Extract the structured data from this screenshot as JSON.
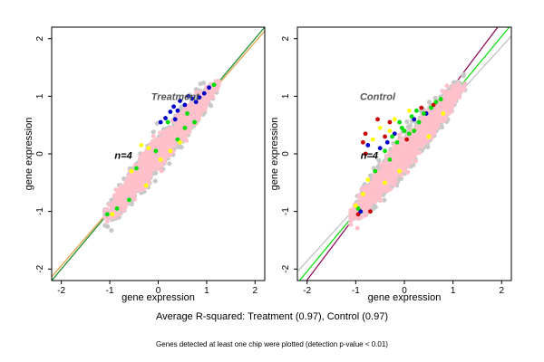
{
  "footer": {
    "caption": "Average R-squared: Treatment (0.97), Control (0.97)",
    "note": "Genes detected at least one chip were plotted (detection p-value < 0.01)"
  },
  "chart_data": [
    {
      "type": "scatter",
      "panel_label": "Treatment",
      "n_label": "n=4",
      "xlabel": "gene expression",
      "ylabel": "gene expression",
      "xlim": [
        -2.2,
        2.2
      ],
      "ylim": [
        -2.2,
        2.2
      ],
      "x_ticks": [
        -2,
        -1,
        0,
        1,
        2
      ],
      "y_ticks": [
        -2,
        -1,
        0,
        1,
        2
      ],
      "reference_lines": [
        {
          "slope": 1.0,
          "intercept": 0.0,
          "color": "#1a2a8c"
        },
        {
          "slope": 1.0,
          "intercept": 0.0,
          "color": "#2e9e2e"
        },
        {
          "slope": 0.97,
          "intercept": 0.0,
          "color": "#e0a040"
        }
      ],
      "cloud": {
        "color": "#ffc0cb",
        "edge_color": "#c8c8c8",
        "x_range": [
          -1.1,
          1.25
        ],
        "spread": 0.32
      },
      "highlighted_points": [
        {
          "color": "#0000cc",
          "points": [
            [
              0.15,
              0.62
            ],
            [
              0.25,
              0.73
            ],
            [
              0.32,
              0.82
            ],
            [
              0.45,
              0.92
            ],
            [
              0.62,
              1.0
            ],
            [
              0.55,
              0.85
            ],
            [
              0.7,
              0.96
            ],
            [
              0.85,
              0.98
            ],
            [
              0.35,
              0.6
            ],
            [
              0.05,
              0.55
            ],
            [
              0.95,
              1.05
            ],
            [
              1.05,
              1.15
            ],
            [
              0.4,
              0.75
            ],
            [
              0.78,
              0.9
            ]
          ]
        },
        {
          "color": "#00dd00",
          "points": [
            [
              -0.05,
              0.05
            ],
            [
              0.4,
              0.25
            ],
            [
              0.75,
              0.55
            ],
            [
              0.55,
              0.45
            ],
            [
              -1.05,
              -1.05
            ],
            [
              -0.85,
              -0.95
            ],
            [
              -0.45,
              -0.25
            ],
            [
              0.2,
              0.55
            ],
            [
              1.15,
              1.2
            ],
            [
              0.6,
              0.7
            ],
            [
              -0.6,
              -0.8
            ]
          ]
        },
        {
          "color": "#ffff00",
          "points": [
            [
              -0.35,
              0.15
            ],
            [
              -0.2,
              0.1
            ],
            [
              0.25,
              0.05
            ],
            [
              -0.55,
              -0.3
            ],
            [
              -0.95,
              -1.05
            ],
            [
              -0.25,
              -0.55
            ],
            [
              0.05,
              -0.1
            ],
            [
              0.45,
              0.2
            ]
          ]
        }
      ]
    },
    {
      "type": "scatter",
      "panel_label": "Control",
      "n_label": "n=4",
      "xlabel": "gene expression",
      "ylabel": "gene expression",
      "xlim": [
        -2.2,
        2.2
      ],
      "ylim": [
        -2.2,
        2.2
      ],
      "x_ticks": [
        -2,
        -1,
        0,
        1,
        2
      ],
      "y_ticks": [
        -2,
        -1,
        0,
        1,
        2
      ],
      "reference_lines": [
        {
          "slope": 1.12,
          "intercept": 0.05,
          "color": "#8c0050"
        },
        {
          "slope": 1.02,
          "intercept": 0.0,
          "color": "#00dd00"
        },
        {
          "slope": 0.93,
          "intercept": 0.0,
          "color": "#c0c0c0"
        }
      ],
      "cloud": {
        "color": "#ffc0cb",
        "edge_color": "#c8c8c8",
        "x_range": [
          -1.1,
          1.25
        ],
        "spread": 0.34
      },
      "highlighted_points": [
        {
          "color": "#cc0000",
          "points": [
            [
              -0.8,
              0.35
            ],
            [
              -0.55,
              0.6
            ],
            [
              -0.85,
              0.2
            ],
            [
              -0.3,
              0.55
            ],
            [
              -0.95,
              -1.05
            ],
            [
              -0.7,
              -1.0
            ],
            [
              0.05,
              0.25
            ],
            [
              0.35,
              0.8
            ],
            [
              -0.4,
              0.3
            ],
            [
              -0.8,
              0.0
            ],
            [
              0.6,
              0.85
            ]
          ]
        },
        {
          "color": "#0000cc",
          "points": [
            [
              -0.75,
              0.15
            ],
            [
              -0.35,
              0.2
            ],
            [
              -0.2,
              0.35
            ],
            [
              0.2,
              0.6
            ],
            [
              -0.9,
              -1.0
            ],
            [
              0.45,
              0.7
            ],
            [
              -0.5,
              0.1
            ]
          ]
        },
        {
          "color": "#00dd00",
          "points": [
            [
              -0.1,
              0.55
            ],
            [
              0.15,
              0.65
            ],
            [
              0.25,
              0.75
            ],
            [
              -0.4,
              0.05
            ],
            [
              0.0,
              0.4
            ],
            [
              0.4,
              0.7
            ],
            [
              0.55,
              0.8
            ],
            [
              -0.15,
              0.2
            ],
            [
              0.1,
              0.35
            ],
            [
              -0.3,
              -0.1
            ],
            [
              0.65,
              0.9
            ],
            [
              -0.05,
              0.45
            ],
            [
              0.3,
              0.55
            ],
            [
              -0.6,
              -0.3
            ],
            [
              -0.95,
              -0.95
            ],
            [
              0.75,
              0.95
            ],
            [
              0.2,
              0.4
            ],
            [
              -0.25,
              0.3
            ]
          ]
        },
        {
          "color": "#ffff00",
          "points": [
            [
              -0.5,
              0.45
            ],
            [
              -0.65,
              0.25
            ],
            [
              -0.2,
              0.6
            ],
            [
              0.1,
              0.75
            ],
            [
              -0.4,
              -0.5
            ],
            [
              -0.75,
              -0.45
            ],
            [
              -0.3,
              0.4
            ],
            [
              -0.85,
              -0.7
            ],
            [
              0.5,
              0.3
            ],
            [
              -0.1,
              -0.3
            ],
            [
              0.8,
              0.7
            ],
            [
              -1.0,
              -0.9
            ]
          ]
        }
      ]
    }
  ]
}
